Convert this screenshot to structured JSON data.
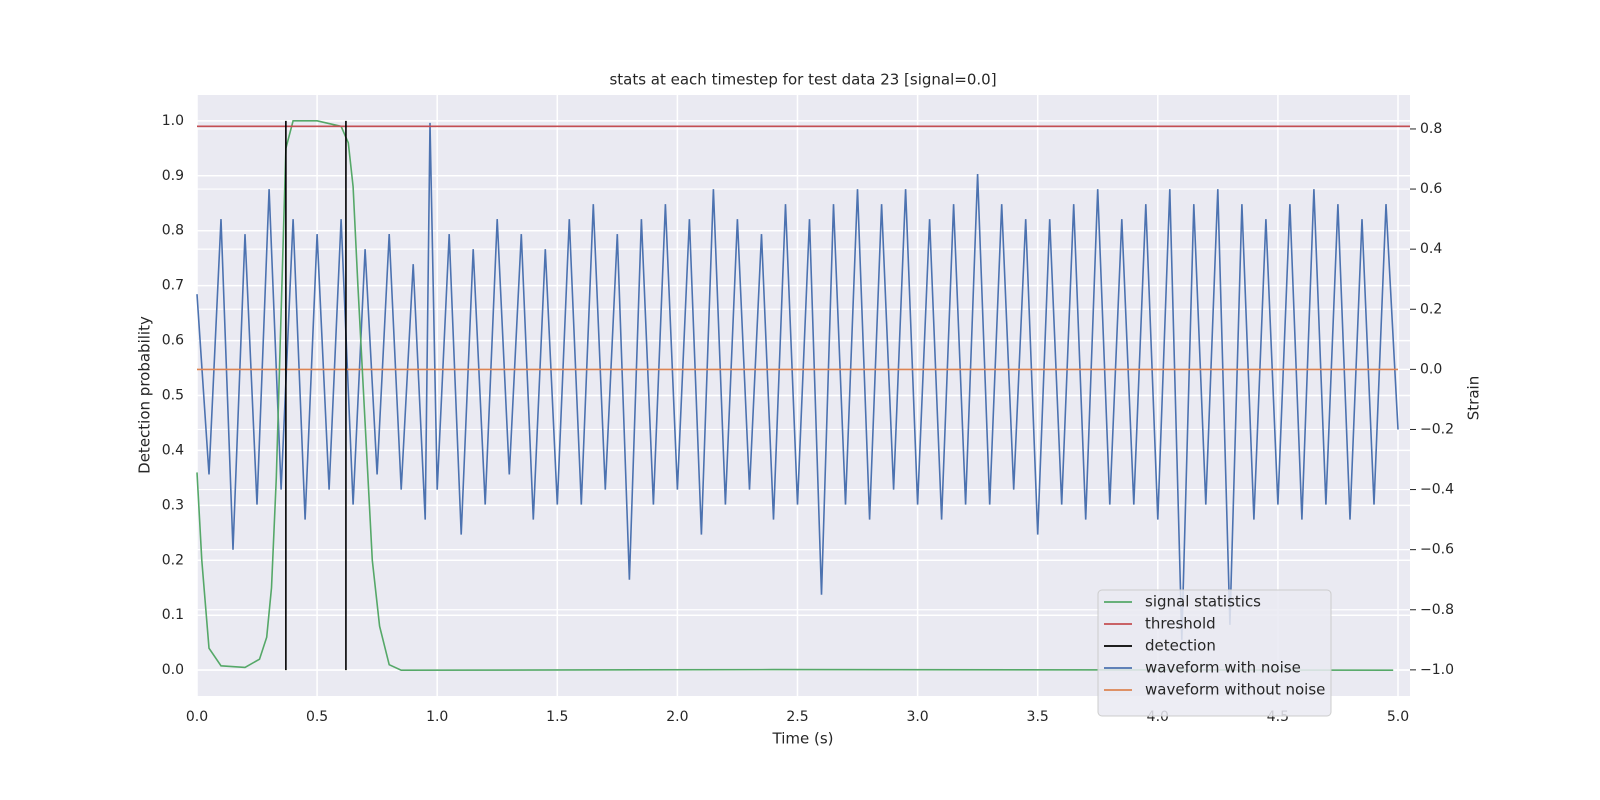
{
  "chart_data": {
    "type": "line",
    "title": "stats at each timestep for test data 23 [signal=0.0]",
    "x_label": "Time (s)",
    "y_label": "Detection probability",
    "y2_label": "Strain",
    "xlim": [
      0,
      5.05
    ],
    "ylim": [
      -0.047,
      1.047
    ],
    "y2lim": [
      -1.087,
      0.913
    ],
    "xticks": [
      {
        "value": 0,
        "label": "0.0"
      },
      0.5,
      {
        "value": 1,
        "label": "1.0"
      },
      1.5,
      {
        "value": 2,
        "label": "2.0"
      },
      2.5,
      {
        "value": 3,
        "label": "3.0"
      },
      3.5,
      {
        "value": 4,
        "label": "4.0"
      },
      4.5,
      {
        "value": 5,
        "label": "5.0"
      }
    ],
    "yticks": [
      {
        "value": 0,
        "label": "0.0"
      },
      0.1,
      0.2,
      0.3,
      0.4,
      0.5,
      0.6,
      0.7,
      0.8,
      0.9,
      {
        "value": 1,
        "label": "1.0"
      }
    ],
    "y2ticks": [
      {
        "value": -1,
        "label": "−1.0"
      },
      {
        "value": -0.8,
        "label": "−0.8"
      },
      {
        "value": -0.6,
        "label": "−0.6"
      },
      {
        "value": -0.4,
        "label": "−0.4"
      },
      {
        "value": -0.2,
        "label": "−0.2"
      },
      {
        "value": 0,
        "label": "0.0"
      },
      {
        "value": 0.2,
        "label": "0.2"
      },
      {
        "value": 0.4,
        "label": "0.4"
      },
      {
        "value": 0.6,
        "label": "0.6"
      },
      {
        "value": 0.8,
        "label": "0.8"
      }
    ],
    "grid": true,
    "legend": "lower right",
    "series": [
      {
        "name": "signal statistics",
        "kind": "line",
        "color": "#55a868",
        "x": [
          0,
          0.02,
          0.05,
          0.1,
          0.2,
          0.26,
          0.29,
          0.31,
          0.33,
          0.35,
          0.37,
          0.4,
          0.5,
          0.6,
          0.63,
          0.65,
          0.67,
          0.7,
          0.73,
          0.76,
          0.8,
          0.85,
          2.4,
          4.98
        ],
        "values": [
          0.36,
          0.2,
          0.04,
          0.008,
          0.005,
          0.02,
          0.06,
          0.15,
          0.35,
          0.65,
          0.95,
          1.0,
          1.0,
          0.99,
          0.96,
          0.88,
          0.7,
          0.45,
          0.2,
          0.08,
          0.01,
          0.0,
          0.001,
          0.0
        ]
      },
      {
        "name": "threshold",
        "kind": "hline",
        "color": "#c44e52",
        "values": [
          0.99
        ]
      },
      {
        "name": "detection",
        "kind": "vline",
        "color": "#000000",
        "x": [
          0.37,
          0.62
        ],
        "values": [
          1.0,
          1.0
        ]
      },
      {
        "name": "waveform with noise",
        "kind": "line",
        "axis": "y2",
        "color": "#4c72b0",
        "x": [
          0,
          0.05,
          0.1,
          0.15,
          0.2,
          0.25,
          0.3,
          0.35,
          0.4,
          0.45,
          0.5,
          0.55,
          0.6,
          0.65,
          0.7,
          0.75,
          0.8,
          0.85,
          0.9,
          0.95,
          0.97,
          1.0,
          1.05,
          1.1,
          1.15,
          1.2,
          1.25,
          1.3,
          1.35,
          1.4,
          1.45,
          1.5,
          1.55,
          1.6,
          1.65,
          1.7,
          1.75,
          1.8,
          1.85,
          1.9,
          1.95,
          2.0,
          2.05,
          2.1,
          2.15,
          2.2,
          2.25,
          2.3,
          2.35,
          2.4,
          2.45,
          2.5,
          2.55,
          2.6,
          2.65,
          2.7,
          2.75,
          2.8,
          2.85,
          2.9,
          2.95,
          3.0,
          3.05,
          3.1,
          3.15,
          3.2,
          3.25,
          3.3,
          3.35,
          3.4,
          3.45,
          3.5,
          3.55,
          3.6,
          3.65,
          3.7,
          3.75,
          3.8,
          3.85,
          3.9,
          3.95,
          4.0,
          4.05,
          4.1,
          4.15,
          4.2,
          4.25,
          4.3,
          4.35,
          4.4,
          4.45,
          4.5,
          4.55,
          4.6,
          4.65,
          4.7,
          4.75,
          4.8,
          4.85,
          4.9,
          4.95,
          5.0
        ],
        "values": [
          0.25,
          -0.35,
          0.5,
          -0.6,
          0.45,
          -0.45,
          0.6,
          -0.4,
          0.5,
          -0.5,
          0.45,
          -0.4,
          0.5,
          -0.45,
          0.4,
          -0.35,
          0.45,
          -0.4,
          0.35,
          -0.5,
          0.82,
          -0.4,
          0.45,
          -0.55,
          0.4,
          -0.45,
          0.5,
          -0.35,
          0.45,
          -0.5,
          0.4,
          -0.45,
          0.5,
          -0.45,
          0.55,
          -0.4,
          0.45,
          -0.7,
          0.5,
          -0.45,
          0.55,
          -0.4,
          0.5,
          -0.55,
          0.6,
          -0.45,
          0.5,
          -0.4,
          0.45,
          -0.5,
          0.55,
          -0.45,
          0.5,
          -0.75,
          0.55,
          -0.45,
          0.6,
          -0.5,
          0.55,
          -0.4,
          0.6,
          -0.45,
          0.5,
          -0.5,
          0.55,
          -0.45,
          0.65,
          -0.45,
          0.55,
          -0.4,
          0.5,
          -0.55,
          0.5,
          -0.45,
          0.55,
          -0.5,
          0.6,
          -0.45,
          0.5,
          -0.45,
          0.55,
          -0.5,
          0.6,
          -0.9,
          0.55,
          -0.45,
          0.6,
          -0.85,
          0.55,
          -0.5,
          0.5,
          -0.45,
          0.55,
          -0.5,
          0.6,
          -0.45,
          0.55,
          -0.5,
          0.5,
          -0.45,
          0.55,
          -0.2
        ]
      },
      {
        "name": "waveform without noise",
        "kind": "line",
        "axis": "y2",
        "color": "#dd8452",
        "x": [
          0,
          5.0
        ],
        "values": [
          0.0,
          0.0
        ]
      }
    ]
  }
}
